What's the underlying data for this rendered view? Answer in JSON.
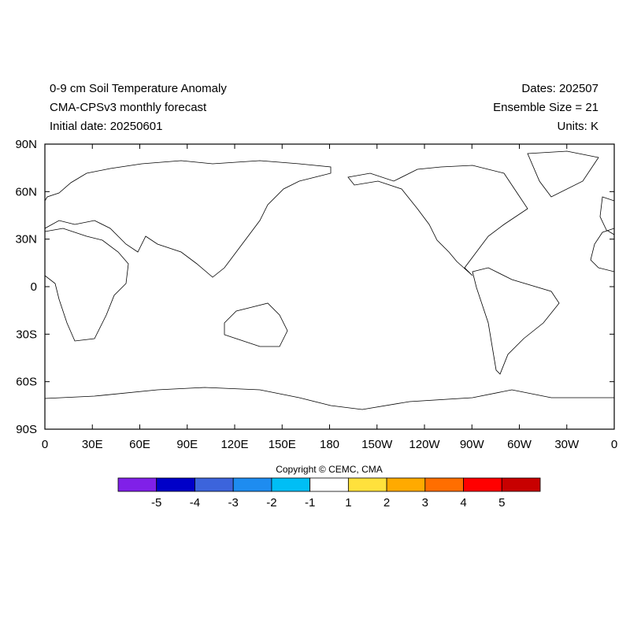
{
  "header": {
    "left": [
      "0-9 cm Soil Temperature Anomaly",
      "CMA-CPSv3 monthly forecast",
      "Initial date: 20250601"
    ],
    "right": [
      "Dates: 202507",
      "Ensemble Size = 21",
      "Units: K"
    ]
  },
  "map": {
    "lon_ticks": [
      {
        "value": 0,
        "label": "0"
      },
      {
        "value": 30,
        "label": "30E"
      },
      {
        "value": 60,
        "label": "60E"
      },
      {
        "value": 90,
        "label": "90E"
      },
      {
        "value": 120,
        "label": "120E"
      },
      {
        "value": 150,
        "label": "150E"
      },
      {
        "value": 180,
        "label": "180"
      },
      {
        "value": 210,
        "label": "150W"
      },
      {
        "value": 240,
        "label": "120W"
      },
      {
        "value": 270,
        "label": "90W"
      },
      {
        "value": 300,
        "label": "60W"
      },
      {
        "value": 330,
        "label": "30W"
      },
      {
        "value": 360,
        "label": "0"
      }
    ],
    "lat_ticks": [
      {
        "value": 90,
        "label": "90N"
      },
      {
        "value": 60,
        "label": "60N"
      },
      {
        "value": 30,
        "label": "30N"
      },
      {
        "value": 0,
        "label": "0"
      },
      {
        "value": -30,
        "label": "30S"
      },
      {
        "value": -60,
        "label": "60S"
      },
      {
        "value": -90,
        "label": "90S"
      }
    ]
  },
  "copyright": "Copyright © CEMC, CMA",
  "colorbar": {
    "colors": [
      "#8020e8",
      "#0000c8",
      "#3c64dc",
      "#1e8cf0",
      "#00bef5",
      "#ffffff",
      "#ffe13c",
      "#ffaa00",
      "#ff6e00",
      "#ff0000",
      "#c80000"
    ],
    "levels": [
      -5,
      -4,
      -3,
      -2,
      -1,
      1,
      2,
      3,
      4,
      5
    ]
  }
}
